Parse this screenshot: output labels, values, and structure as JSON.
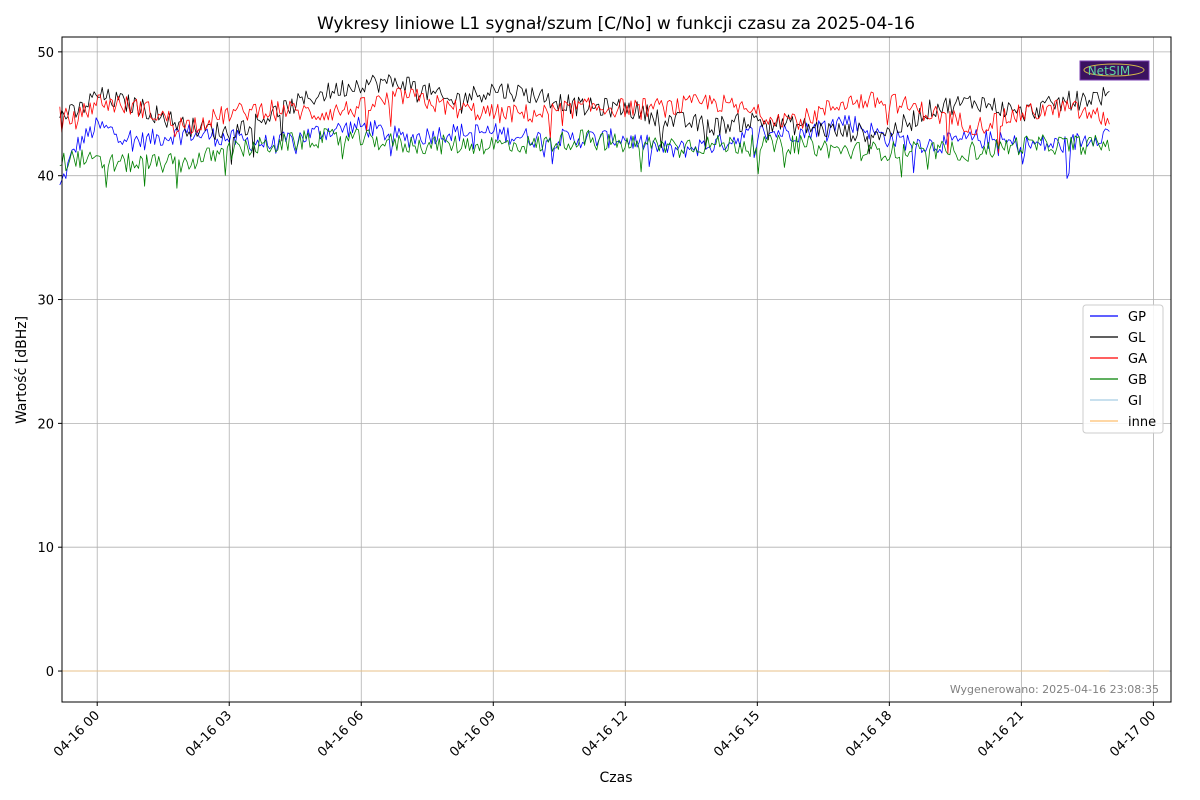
{
  "chart_data": {
    "type": "line",
    "title": "Wykresy liniowe L1 sygnał/szum [C/No] w funkcji czasu za 2025-04-16",
    "xlabel": "Czas",
    "ylabel": "Wartość [dBHz]",
    "x_range_hours": [
      -0.8,
      24.4
    ],
    "ylim": [
      -2.5,
      51.2
    ],
    "x_ticks": [
      {
        "hour": 0,
        "label": "04-16 00"
      },
      {
        "hour": 3,
        "label": "04-16 03"
      },
      {
        "hour": 6,
        "label": "04-16 06"
      },
      {
        "hour": 9,
        "label": "04-16 09"
      },
      {
        "hour": 12,
        "label": "04-16 12"
      },
      {
        "hour": 15,
        "label": "04-16 15"
      },
      {
        "hour": 18,
        "label": "04-16 18"
      },
      {
        "hour": 21,
        "label": "04-16 21"
      },
      {
        "hour": 24,
        "label": "04-17 00"
      }
    ],
    "y_ticks": [
      0,
      10,
      20,
      30,
      40,
      50
    ],
    "grid": true,
    "legend_position": "right",
    "series": [
      {
        "name": "GP",
        "color": "#0000ff",
        "x_hours": [
          -0.85,
          -0.5,
          0,
          1,
          2,
          3,
          4,
          5,
          6,
          7,
          8,
          9,
          10,
          11,
          12,
          13,
          14,
          15,
          16,
          17,
          18,
          19,
          20,
          21,
          22,
          23.0
        ],
        "values": [
          39.0,
          42.3,
          44.0,
          42.8,
          43.5,
          43.0,
          42.5,
          43.5,
          44.0,
          43.0,
          43.5,
          43.5,
          43.0,
          43.0,
          43.0,
          42.0,
          42.5,
          43.5,
          43.5,
          44.5,
          43.0,
          42.5,
          43.0,
          42.5,
          42.5,
          43.5
        ]
      },
      {
        "name": "GL",
        "color": "#000000",
        "x_hours": [
          -0.85,
          -0.5,
          0,
          1,
          2,
          3,
          4,
          5,
          6,
          7,
          8,
          9,
          10,
          11,
          12,
          13,
          14,
          15,
          16,
          17,
          18,
          19,
          20,
          21,
          22,
          23.0
        ],
        "values": [
          45.0,
          45.0,
          46.5,
          45.5,
          44.0,
          43.5,
          45.0,
          46.5,
          47.5,
          47.5,
          46.0,
          47.0,
          46.5,
          45.5,
          45.5,
          44.5,
          44.0,
          44.5,
          44.0,
          43.5,
          43.5,
          45.5,
          46.0,
          45.0,
          46.0,
          46.5
        ]
      },
      {
        "name": "GA",
        "color": "#ff0000",
        "x_hours": [
          -0.85,
          -0.5,
          0,
          1,
          2,
          3,
          4,
          5,
          6,
          7,
          8,
          9,
          10,
          11,
          12,
          13,
          14,
          15,
          16,
          17,
          18,
          19,
          20,
          21,
          22,
          23.0
        ],
        "values": [
          44.8,
          44.5,
          46.0,
          45.5,
          44.0,
          45.0,
          45.5,
          45.0,
          45.5,
          46.5,
          45.5,
          45.0,
          45.0,
          45.5,
          45.5,
          45.5,
          46.0,
          45.0,
          44.5,
          46.0,
          46.0,
          45.0,
          44.0,
          45.0,
          45.5,
          44.5
        ]
      },
      {
        "name": "GB",
        "color": "#008000",
        "x_hours": [
          -0.85,
          -0.5,
          0,
          1,
          2,
          3,
          4,
          5,
          6,
          7,
          8,
          9,
          10,
          11,
          12,
          13,
          14,
          15,
          16,
          17,
          18,
          19,
          20,
          21,
          22,
          23.0
        ],
        "values": [
          41.0,
          41.5,
          41.0,
          41.0,
          41.0,
          42.0,
          42.5,
          43.0,
          43.0,
          42.5,
          42.5,
          42.5,
          42.5,
          43.0,
          42.5,
          42.5,
          42.5,
          42.5,
          42.5,
          42.0,
          42.0,
          42.0,
          42.0,
          42.5,
          42.5,
          42.5
        ]
      },
      {
        "name": "GI",
        "color": "#a6cee3",
        "x_hours": [
          -0.85,
          23.0
        ],
        "values": [
          0.0,
          0.0
        ]
      },
      {
        "name": "inne",
        "color": "#fdbf6f",
        "x_hours": [
          -0.85,
          23.0
        ],
        "values": [
          0.0,
          0.0
        ]
      }
    ],
    "annotations": {
      "footnote": "Wygenerowano: 2025-04-16 23:08:35",
      "logo_text": "NetSIM"
    }
  }
}
